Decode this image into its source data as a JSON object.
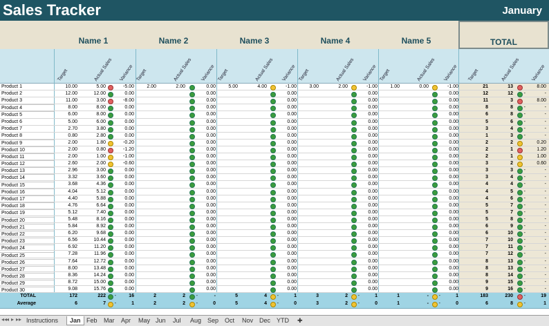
{
  "title": "Sales Tracker",
  "month": "January",
  "names": [
    "Name 1",
    "Name 2",
    "Name 3",
    "Name 4",
    "Name 5"
  ],
  "total_label": "TOTAL",
  "sub_headers": [
    "Target",
    "Actual Sales",
    "Variance"
  ],
  "products": [
    {
      "name": "Product 1",
      "n1": [
        "10.00",
        "5.00",
        "red",
        "-5.00"
      ],
      "n2": [
        "2.00",
        "2.00",
        "green",
        "0.00"
      ],
      "n3": [
        "5.00",
        "4.00",
        "yellow",
        "-1.00"
      ],
      "n4": [
        "3.00",
        "2.00",
        "yellow",
        "-1.00"
      ],
      "n5": [
        "1.00",
        "0.00",
        "yellow",
        "-1.00"
      ],
      "t": [
        "21",
        "13",
        "red",
        "8.00"
      ]
    },
    {
      "name": "Product 2",
      "n1": [
        "12.00",
        "12.00",
        "green",
        "0.00"
      ],
      "t": [
        "12",
        "12",
        "green",
        "-"
      ]
    },
    {
      "name": "Product 3",
      "n1": [
        "11.00",
        "3.00",
        "red",
        "-8.00"
      ],
      "t": [
        "11",
        "3",
        "red",
        "8.00"
      ]
    },
    {
      "name": "Product 4",
      "n1": [
        "8.00",
        "8.00",
        "green",
        "0.00"
      ],
      "t": [
        "8",
        "8",
        "green",
        "-"
      ]
    },
    {
      "name": "Product 5",
      "n1": [
        "6.00",
        "8.00",
        "green",
        "0.00"
      ],
      "t": [
        "6",
        "8",
        "green",
        "-"
      ]
    },
    {
      "name": "Product 6",
      "n1": [
        "5.00",
        "6.00",
        "green",
        "0.00"
      ],
      "t": [
        "5",
        "6",
        "green",
        "-"
      ]
    },
    {
      "name": "Product 7",
      "n1": [
        "2.70",
        "3.80",
        "green",
        "0.00"
      ],
      "t": [
        "3",
        "4",
        "green",
        "-"
      ]
    },
    {
      "name": "Product 8",
      "n1": [
        "0.80",
        "2.80",
        "green",
        "0.00"
      ],
      "t": [
        "1",
        "3",
        "green",
        "-"
      ]
    },
    {
      "name": "Product 9",
      "n1": [
        "2.00",
        "1.80",
        "yellow",
        "-0.20"
      ],
      "t": [
        "2",
        "2",
        "yellow",
        "0.20"
      ]
    },
    {
      "name": "Product 10",
      "n1": [
        "2.00",
        "0.80",
        "red",
        "-1.20"
      ],
      "t": [
        "2",
        "1",
        "red",
        "1.20"
      ]
    },
    {
      "name": "Product 11",
      "n1": [
        "2.00",
        "1.00",
        "yellow",
        "-1.00"
      ],
      "t": [
        "2",
        "1",
        "yellow",
        "1.00"
      ]
    },
    {
      "name": "Product 12",
      "n1": [
        "2.60",
        "2.00",
        "yellow",
        "-0.60"
      ],
      "t": [
        "3",
        "2",
        "yellow",
        "0.60"
      ]
    },
    {
      "name": "Product 13",
      "n1": [
        "2.96",
        "3.00",
        "green",
        "0.00"
      ],
      "t": [
        "3",
        "3",
        "green",
        "-"
      ]
    },
    {
      "name": "Product 14",
      "n1": [
        "3.32",
        "3.60",
        "green",
        "0.00"
      ],
      "t": [
        "3",
        "4",
        "green",
        "-"
      ]
    },
    {
      "name": "Product 15",
      "n1": [
        "3.68",
        "4.36",
        "green",
        "0.00"
      ],
      "t": [
        "4",
        "4",
        "green",
        "-"
      ]
    },
    {
      "name": "Product 16",
      "n1": [
        "4.04",
        "5.12",
        "green",
        "0.00"
      ],
      "t": [
        "4",
        "5",
        "green",
        "-"
      ]
    },
    {
      "name": "Product 17",
      "n1": [
        "4.40",
        "5.88",
        "green",
        "0.00"
      ],
      "t": [
        "4",
        "6",
        "green",
        "-"
      ]
    },
    {
      "name": "Product 18",
      "n1": [
        "4.76",
        "6.64",
        "green",
        "0.00"
      ],
      "t": [
        "5",
        "7",
        "green",
        "-"
      ]
    },
    {
      "name": "Product 19",
      "n1": [
        "5.12",
        "7.40",
        "green",
        "0.00"
      ],
      "t": [
        "5",
        "7",
        "green",
        "-"
      ]
    },
    {
      "name": "Product 20",
      "n1": [
        "5.48",
        "8.16",
        "green",
        "0.00"
      ],
      "t": [
        "5",
        "8",
        "green",
        "-"
      ]
    },
    {
      "name": "Product 21",
      "n1": [
        "5.84",
        "8.92",
        "green",
        "0.00"
      ],
      "t": [
        "6",
        "9",
        "green",
        "-"
      ]
    },
    {
      "name": "Product 22",
      "n1": [
        "6.20",
        "9.68",
        "green",
        "0.00"
      ],
      "t": [
        "6",
        "10",
        "green",
        "-"
      ]
    },
    {
      "name": "Product 23",
      "n1": [
        "6.56",
        "10.44",
        "green",
        "0.00"
      ],
      "t": [
        "7",
        "10",
        "green",
        "-"
      ]
    },
    {
      "name": "Product 24",
      "n1": [
        "6.92",
        "11.20",
        "green",
        "0.00"
      ],
      "t": [
        "7",
        "11",
        "green",
        "-"
      ]
    },
    {
      "name": "Product 25",
      "n1": [
        "7.28",
        "11.96",
        "green",
        "0.00"
      ],
      "t": [
        "7",
        "12",
        "green",
        "-"
      ]
    },
    {
      "name": "Product 26",
      "n1": [
        "7.64",
        "12.72",
        "green",
        "0.00"
      ],
      "t": [
        "8",
        "13",
        "green",
        "-"
      ]
    },
    {
      "name": "Product 27",
      "n1": [
        "8.00",
        "13.48",
        "green",
        "0.00"
      ],
      "t": [
        "8",
        "13",
        "green",
        "-"
      ]
    },
    {
      "name": "Product 28",
      "n1": [
        "8.36",
        "14.24",
        "green",
        "0.00"
      ],
      "t": [
        "8",
        "14",
        "green",
        "-"
      ]
    },
    {
      "name": "Product 29",
      "n1": [
        "8.72",
        "15.00",
        "green",
        "0.00"
      ],
      "t": [
        "9",
        "15",
        "green",
        "-"
      ]
    },
    {
      "name": "Product 30",
      "n1": [
        "9.08",
        "15.76",
        "green",
        "0.00"
      ],
      "t": [
        "9",
        "16",
        "green",
        "-"
      ]
    }
  ],
  "total_row": {
    "label": "TOTAL",
    "cols": [
      [
        "172",
        "222",
        "green",
        "-",
        "16"
      ],
      [
        "2",
        "2",
        "green",
        "-"
      ],
      [
        "5",
        "4",
        "yellow",
        "1"
      ],
      [
        "3",
        "2",
        "yellow",
        "1"
      ],
      [
        "1",
        "-",
        "yellow",
        "1"
      ],
      [
        "183",
        "230",
        "red",
        "19"
      ]
    ]
  },
  "avg_row": {
    "label": "Average",
    "cols": [
      [
        "6",
        "7",
        "yellow",
        "1"
      ],
      [
        "2",
        "2",
        "yellow",
        "0"
      ],
      [
        "5",
        "4",
        "yellow",
        "0"
      ],
      [
        "3",
        "2",
        "yellow",
        "0"
      ],
      [
        "1",
        "-",
        "yellow",
        "0"
      ],
      [
        "6",
        "8",
        "yellow",
        "1"
      ]
    ]
  },
  "tabs": [
    "Instructions",
    "Jan",
    "Feb",
    "Mar",
    "Apr",
    "May",
    "Jun",
    "Jul",
    "Aug",
    "Sep",
    "Oct",
    "Nov",
    "Dec",
    "YTD"
  ],
  "active_tab": "Jan"
}
